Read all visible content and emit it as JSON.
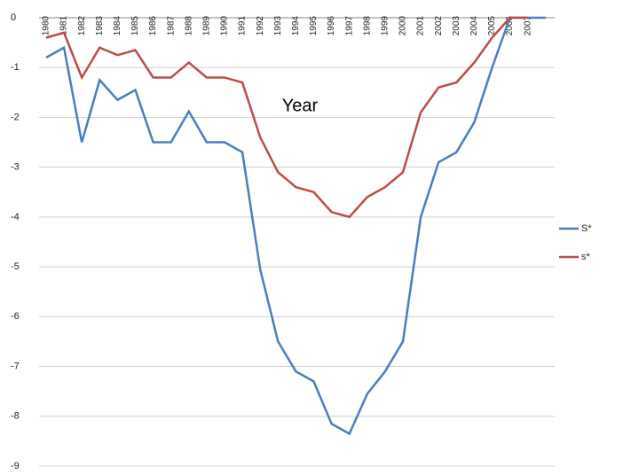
{
  "chart_data": {
    "type": "line",
    "x_label": "Year",
    "categories": [
      "1980",
      "1981",
      "1982",
      "1983",
      "1984",
      "1985",
      "1986",
      "1987",
      "1988",
      "1989",
      "1990",
      "1991",
      "1992",
      "1993",
      "1994",
      "1995",
      "1996",
      "1997",
      "1998",
      "1999",
      "2000",
      "2001",
      "2002",
      "2003",
      "2004",
      "2005",
      "2006",
      "2007",
      null
    ],
    "series": [
      {
        "name": "S*",
        "color": "#4a7ebb",
        "values": [
          -0.8,
          -0.6,
          -2.5,
          -1.25,
          -1.65,
          -1.45,
          -2.5,
          -2.5,
          -1.88,
          -2.5,
          -2.5,
          -2.7,
          -5.05,
          -6.5,
          -7.1,
          -7.3,
          -8.15,
          -8.35,
          -7.55,
          -7.1,
          -6.5,
          -4.0,
          -2.9,
          -2.7,
          -2.1,
          -1.0,
          0,
          0,
          0
        ]
      },
      {
        "name": "s*",
        "color": "#be4b48",
        "values": [
          -0.4,
          -0.3,
          -1.2,
          -0.6,
          -0.75,
          -0.65,
          -1.2,
          -1.2,
          -0.9,
          -1.2,
          -1.2,
          -1.3,
          -2.4,
          -3.1,
          -3.4,
          -3.5,
          -3.9,
          -4.0,
          -3.6,
          -3.4,
          -3.1,
          -1.9,
          -1.4,
          -1.3,
          -0.9,
          -0.4,
          0,
          0,
          null
        ]
      }
    ],
    "ylim": [
      -9,
      0
    ],
    "yticks": [
      0,
      -1,
      -2,
      -3,
      -4,
      -5,
      -6,
      -7,
      -8,
      -9
    ],
    "grid": true,
    "legend": "right"
  }
}
